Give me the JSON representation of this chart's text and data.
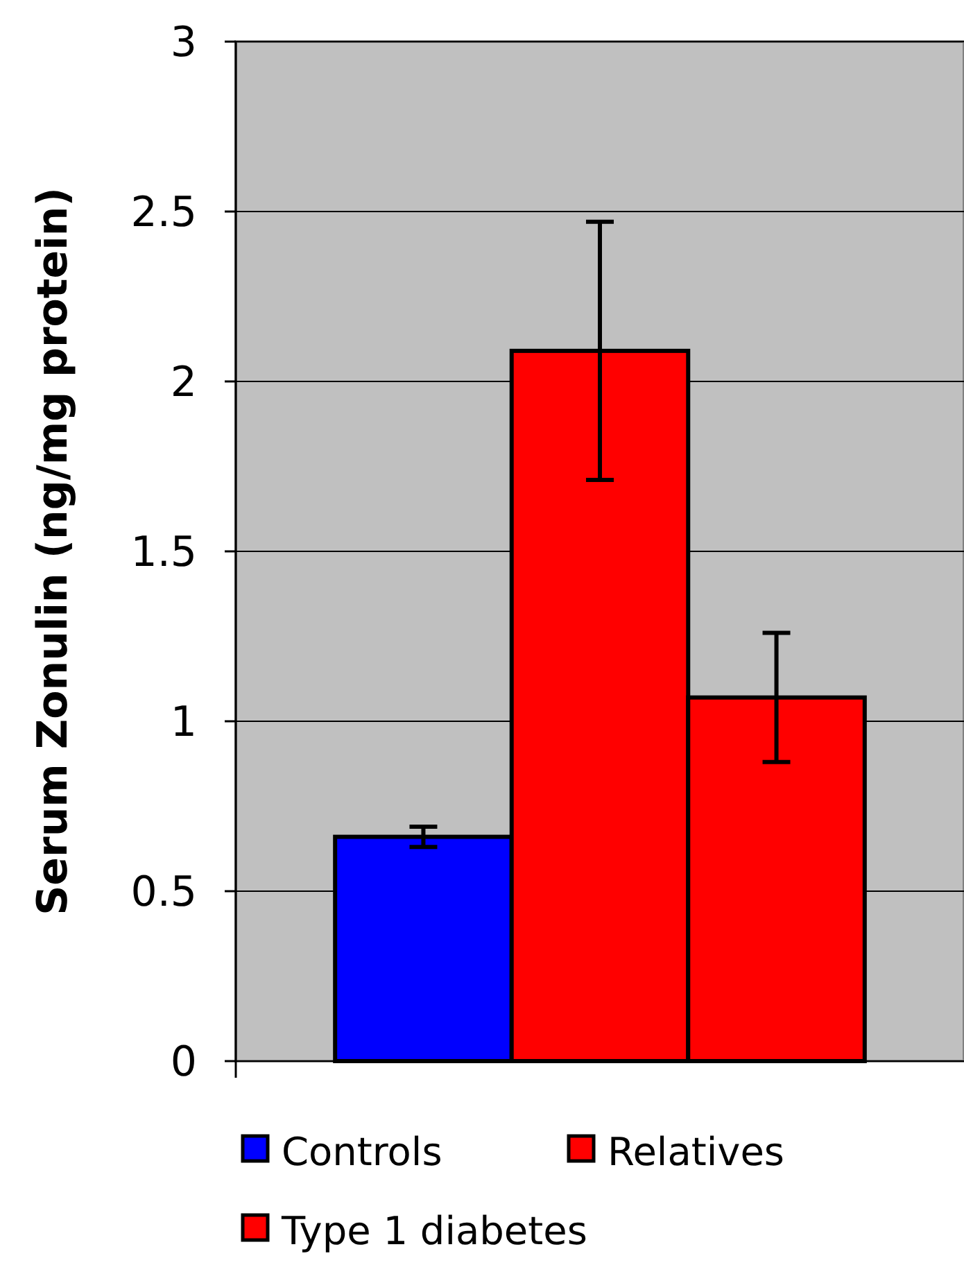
{
  "chart_data": {
    "type": "bar",
    "ylabel": "Serum Zonulin (ng/mg protein)",
    "categories": [
      null
    ],
    "series": [
      {
        "name": "Controls",
        "color": "#0000ff",
        "values": [
          0.66
        ],
        "errors": [
          0.03
        ]
      },
      {
        "name": "Type 1 diabetes",
        "color": "#ff0000",
        "values": [
          2.09
        ],
        "errors": [
          0.38
        ]
      },
      {
        "name": "Relatives",
        "color": "#ff0000",
        "values": [
          1.07
        ],
        "errors": [
          0.19
        ]
      }
    ],
    "ylim": [
      0,
      3
    ],
    "yticks": [
      0,
      0.5,
      1,
      1.5,
      2,
      2.5,
      3
    ],
    "grid": "y",
    "legend": "bottom"
  }
}
